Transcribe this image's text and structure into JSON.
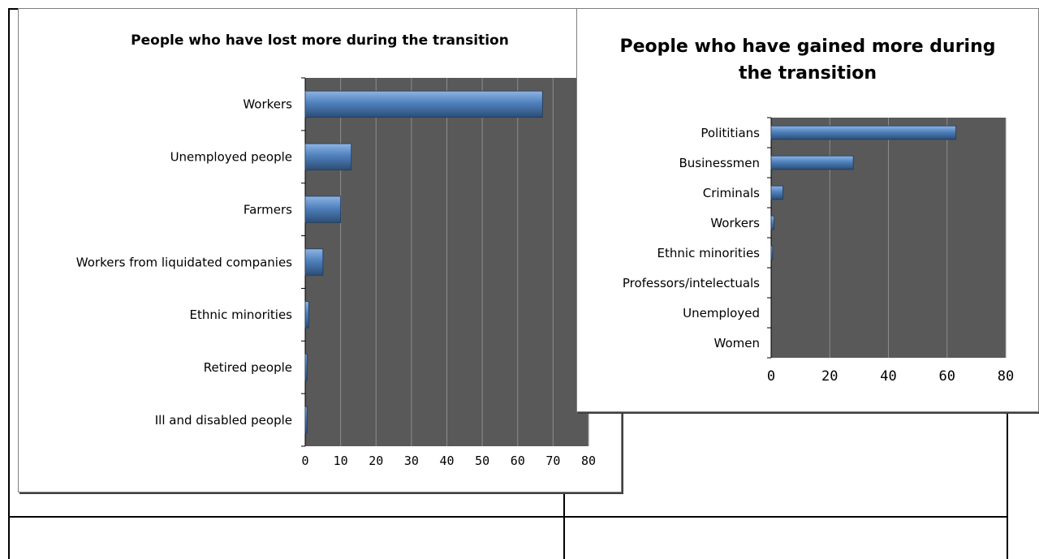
{
  "colors": {
    "plot_background": "#595959",
    "grid": "#8c8c8c",
    "bar_light": "#8fb4e3",
    "bar_mid": "#4f81bd",
    "bar_dark": "#2c4d75"
  },
  "chart_data": [
    {
      "type": "bar",
      "orientation": "horizontal",
      "title": "People who have lost more during the transition",
      "categories": [
        "Workers",
        "Unemployed people",
        "Farmers",
        "Workers from liquidated companies",
        "Ethnic minorities",
        "Retired people",
        "Ill and disabled people"
      ],
      "values": [
        67,
        13,
        10,
        5,
        1,
        0.5,
        0.5
      ],
      "xlim": [
        0,
        80
      ],
      "xticks": [
        "0",
        "10",
        "20",
        "30",
        "40",
        "50",
        "60",
        "70",
        "80"
      ],
      "grid": true,
      "legend": "none"
    },
    {
      "type": "bar",
      "orientation": "horizontal",
      "title": "People who have gained more during the transition",
      "categories": [
        "Polititians",
        "Businessmen",
        "Criminals",
        "Workers",
        "Ethnic minorities",
        "Professors/intelectuals",
        "Unemployed",
        "Women"
      ],
      "values": [
        63,
        28,
        4,
        1,
        0.5,
        0,
        0,
        0
      ],
      "xlim": [
        0,
        80
      ],
      "xticks": [
        "0",
        "20",
        "40",
        "60",
        "80"
      ],
      "grid": true,
      "legend": "none"
    }
  ]
}
